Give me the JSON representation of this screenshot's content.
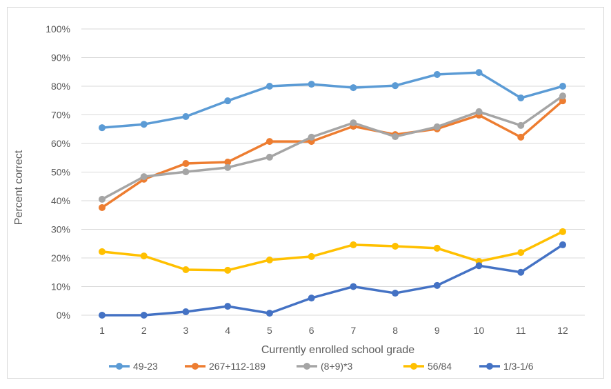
{
  "chart_data": {
    "type": "line",
    "title": "",
    "xlabel": "Currently enrolled school grade",
    "ylabel": "Percent correct",
    "x": [
      1,
      2,
      3,
      4,
      5,
      6,
      7,
      8,
      9,
      10,
      11,
      12
    ],
    "ylim": [
      0,
      100
    ],
    "yticks": [
      "0%",
      "10%",
      "20%",
      "30%",
      "40%",
      "50%",
      "60%",
      "70%",
      "80%",
      "90%",
      "100%"
    ],
    "grid": true,
    "legend": "bottom",
    "series": [
      {
        "name": "49-23",
        "color": "#5B9BD5",
        "values": [
          65.5,
          66.7,
          69.4,
          74.9,
          80,
          80.7,
          79.5,
          80.2,
          84.1,
          84.8,
          75.9,
          80
        ]
      },
      {
        "name": "267+112-189",
        "color": "#ED7D31",
        "values": [
          37.6,
          47.5,
          53,
          53.5,
          60.7,
          60.7,
          66,
          63.1,
          65.1,
          69.9,
          62.2,
          74.9
        ]
      },
      {
        "name": "(8+9)*3",
        "color": "#A5A5A5",
        "values": [
          40.5,
          48.4,
          50.1,
          51.6,
          55.2,
          62.2,
          67.2,
          62.4,
          65.8,
          71.1,
          66.3,
          76.6
        ]
      },
      {
        "name": "56/84",
        "color": "#FFC000",
        "values": [
          22.2,
          20.7,
          15.9,
          15.7,
          19.3,
          20.5,
          24.6,
          24.1,
          23.4,
          18.8,
          21.9,
          29.2
        ]
      },
      {
        "name": "1/3-1/6",
        "color": "#4472C4",
        "values": [
          0,
          0,
          1.2,
          3.1,
          0.7,
          6,
          10,
          7.7,
          10.4,
          17.3,
          15,
          24.6
        ]
      }
    ]
  }
}
